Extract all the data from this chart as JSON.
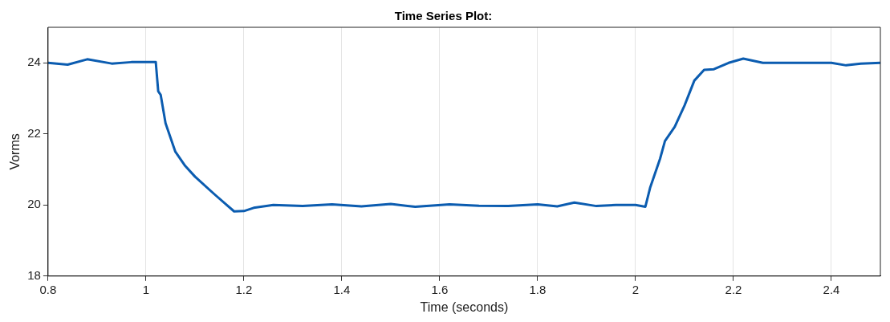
{
  "chart_data": {
    "type": "line",
    "title": "Time Series Plot:",
    "xlabel": "Time (seconds)",
    "ylabel": "Vorms",
    "xlim": [
      0.8,
      2.5
    ],
    "xticks": [
      0.8,
      1,
      1.2,
      1.4,
      1.6,
      1.8,
      2,
      2.2,
      2.4
    ],
    "ylim": [
      18,
      25
    ],
    "yticks": [
      18,
      20,
      22,
      24
    ],
    "grid": "x",
    "series": [
      {
        "color": "#0b5cb0",
        "x": [
          0.8,
          0.84,
          0.88,
          0.93,
          0.97,
          1.02,
          1.025,
          1.03,
          1.04,
          1.05,
          1.06,
          1.08,
          1.1,
          1.14,
          1.18,
          1.2,
          1.22,
          1.26,
          1.32,
          1.38,
          1.44,
          1.5,
          1.55,
          1.62,
          1.68,
          1.74,
          1.8,
          1.84,
          1.875,
          1.92,
          1.96,
          2.0,
          2.02,
          2.03,
          2.05,
          2.06,
          2.08,
          2.1,
          2.12,
          2.14,
          2.16,
          2.19,
          2.22,
          2.26,
          2.3,
          2.4,
          2.43,
          2.46,
          2.5
        ],
        "values": [
          24.0,
          23.95,
          24.1,
          23.98,
          24.02,
          24.02,
          23.2,
          23.1,
          22.3,
          21.9,
          21.5,
          21.1,
          20.8,
          20.3,
          19.82,
          19.83,
          19.92,
          20.0,
          19.97,
          20.02,
          19.96,
          20.03,
          19.95,
          20.02,
          19.98,
          19.97,
          20.02,
          19.96,
          20.07,
          19.97,
          20.0,
          20.0,
          19.95,
          20.5,
          21.3,
          21.8,
          22.2,
          22.8,
          23.5,
          23.8,
          23.82,
          24.0,
          24.12,
          24.0,
          24.0,
          24.0,
          23.93,
          23.98,
          24.0
        ]
      }
    ]
  }
}
